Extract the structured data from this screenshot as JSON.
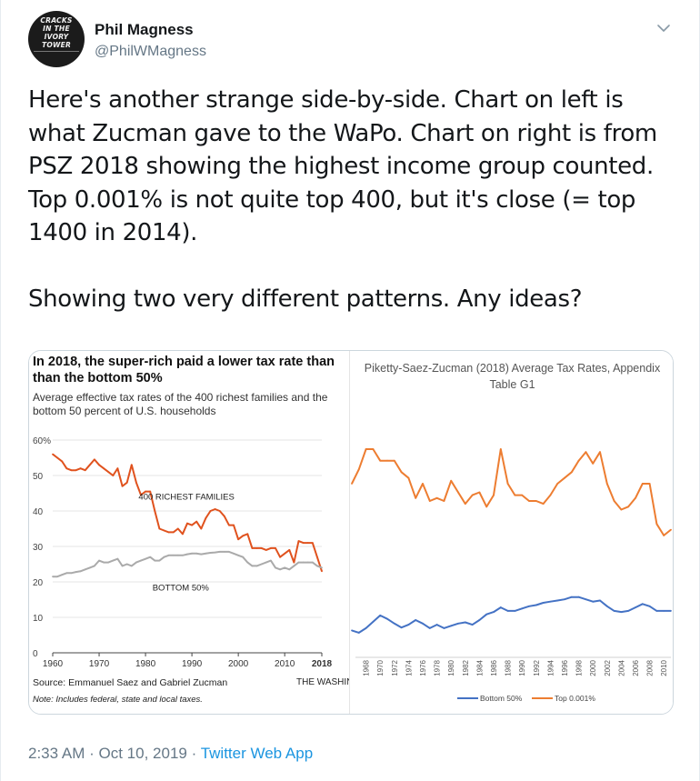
{
  "author": {
    "name": "Phil Magness",
    "handle": "@PhilWMagness",
    "avatar_text": [
      "CRACKS",
      "IN THE",
      "IVORY",
      "TOWER"
    ]
  },
  "tweet": {
    "text": "Here's another strange side-by-side. Chart on left is what Zucman gave to the WaPo. Chart on right is from PSZ 2018 showing the highest income group counted. Top 0.001% is not quite top 400, but it's close (= top 1400 in 2014).\n\nShowing two very different patterns. Any ideas?",
    "time": "2:33 AM",
    "date": "Oct 10, 2019",
    "separator": "·",
    "app": "Twitter Web App"
  },
  "icons": {
    "caret": "chevron-down-icon"
  },
  "colors": {
    "wapo_top": "#e0521e",
    "wapo_bottom": "#aaaaaa",
    "psz_top": "#ed7d31",
    "psz_bottom": "#4472c4",
    "link": "#1b95e0",
    "secondary_text": "#657786"
  },
  "left_chart": {
    "title_line1": "In 2018, the super-rich paid a lower tax rate than",
    "title_line2": "than the bottom 50%",
    "subtitle_line1": "Average effective tax rates of the 400 richest families and the",
    "subtitle_line2": "bottom 50 percent of U.S. households",
    "source": "Source: Emmanuel Saez and Gabriel Zucman",
    "credit": "THE WASHINGTON POST",
    "note": "Note: Includes federal, state and local taxes.",
    "label_top": "400 RICHEST FAMILIES",
    "label_bottom": "BOTTOM 50%"
  },
  "right_chart": {
    "title_line1": "Piketty-Saez-Zucman (2018) Average Tax Rates, Appendix",
    "title_line2": "Table G1"
  },
  "chart_data": [
    {
      "type": "line",
      "title": "In 2018, the super-rich paid a lower tax rate than the bottom 50%",
      "subtitle": "Average effective tax rates of the 400 richest families and the bottom 50 percent of U.S. households",
      "x_ticks": [
        1960,
        1970,
        1980,
        1990,
        2000,
        2010,
        2018
      ],
      "y_ticks": [
        "0",
        "10",
        "20",
        "30",
        "40",
        "50",
        "60%"
      ],
      "xlim": [
        1960,
        2018
      ],
      "ylim": [
        0,
        60
      ],
      "grid": true,
      "series": [
        {
          "name": "400 RICHEST FAMILIES",
          "x": [
            1960,
            1961,
            1962,
            1963,
            1964,
            1965,
            1966,
            1967,
            1968,
            1969,
            1970,
            1971,
            1972,
            1973,
            1974,
            1975,
            1976,
            1977,
            1978,
            1979,
            1980,
            1981,
            1982,
            1983,
            1984,
            1985,
            1986,
            1987,
            1988,
            1989,
            1990,
            1991,
            1992,
            1993,
            1994,
            1995,
            1996,
            1997,
            1998,
            1999,
            2000,
            2001,
            2002,
            2003,
            2004,
            2005,
            2006,
            2007,
            2008,
            2009,
            2010,
            2011,
            2012,
            2013,
            2014,
            2015,
            2016,
            2017,
            2018
          ],
          "values": [
            56,
            55,
            54,
            52,
            51.5,
            51.5,
            52,
            51.5,
            53,
            54.5,
            53,
            52,
            51,
            50,
            52,
            47,
            48,
            53,
            48,
            44.5,
            45.5,
            45.5,
            40,
            35,
            34.5,
            34,
            34,
            35,
            33.5,
            36.5,
            36,
            37,
            35,
            38,
            40,
            40.5,
            40,
            38.5,
            36,
            36,
            32,
            33,
            33.5,
            29.5,
            29.5,
            29.5,
            29,
            29.5,
            29.5,
            27,
            28,
            29,
            25.5,
            31.5,
            31,
            31,
            31,
            27,
            23
          ]
        },
        {
          "name": "BOTTOM 50%",
          "x": [
            1960,
            1961,
            1962,
            1963,
            1964,
            1965,
            1966,
            1967,
            1968,
            1969,
            1970,
            1971,
            1972,
            1973,
            1974,
            1975,
            1976,
            1977,
            1978,
            1979,
            1980,
            1981,
            1982,
            1983,
            1984,
            1985,
            1986,
            1987,
            1988,
            1989,
            1990,
            1991,
            1992,
            1993,
            1994,
            1995,
            1996,
            1997,
            1998,
            1999,
            2000,
            2001,
            2002,
            2003,
            2004,
            2005,
            2006,
            2007,
            2008,
            2009,
            2010,
            2011,
            2012,
            2013,
            2014,
            2015,
            2016,
            2017,
            2018
          ],
          "values": [
            21.5,
            21.5,
            22,
            22.5,
            22.5,
            22.8,
            23,
            23.5,
            24,
            24.5,
            26,
            25.5,
            25.5,
            26,
            26.5,
            24.5,
            25,
            24.5,
            25.5,
            26,
            26.5,
            27,
            26,
            26,
            27,
            27.5,
            27.5,
            27.5,
            27.5,
            27.8,
            28,
            28,
            27.8,
            28,
            28.2,
            28.3,
            28.5,
            28.5,
            28.5,
            28,
            27.5,
            27,
            25.5,
            24.5,
            24.5,
            25,
            25.5,
            26,
            24,
            23.5,
            24,
            23.5,
            24.5,
            25.5,
            25.5,
            25.5,
            25.5,
            24.5,
            24
          ]
        }
      ]
    },
    {
      "type": "line",
      "title": "Piketty-Saez-Zucman (2018) Average Tax Rates, Appendix Table G1",
      "x_ticks": [
        "1968",
        "1970",
        "1972",
        "1974",
        "1976",
        "1978",
        "1980",
        "1982",
        "1984",
        "1986",
        "1988",
        "1990",
        "1992",
        "1994",
        "1996",
        "1998",
        "2000",
        "2002",
        "2004",
        "2006",
        "2008",
        "2010"
      ],
      "xlim": [
        1966,
        2011
      ],
      "grid": false,
      "legend": "bottom-center",
      "series": [
        {
          "name": "Bottom 50%",
          "x": [
            1966,
            1967,
            1968,
            1969,
            1970,
            1971,
            1972,
            1973,
            1974,
            1975,
            1976,
            1977,
            1978,
            1979,
            1980,
            1981,
            1982,
            1983,
            1984,
            1985,
            1986,
            1987,
            1988,
            1989,
            1990,
            1991,
            1992,
            1993,
            1994,
            1995,
            1996,
            1997,
            1998,
            1999,
            2000,
            2001,
            2002,
            2003,
            2004,
            2005,
            2006,
            2007,
            2008,
            2009,
            2010,
            2011
          ],
          "values": [
            22,
            21.6,
            22.4,
            23.5,
            24.6,
            24.0,
            23.2,
            22.5,
            23.0,
            23.8,
            23.2,
            22.4,
            23.0,
            22.4,
            22.8,
            23.2,
            23.4,
            23.0,
            23.8,
            24.8,
            25.2,
            26.0,
            25.4,
            25.4,
            25.8,
            26.2,
            26.4,
            26.8,
            27.0,
            27.2,
            27.4,
            27.8,
            27.8,
            27.4,
            27.0,
            27.2,
            26.2,
            25.4,
            25.2,
            25.4,
            26.0,
            26.6,
            26.2,
            25.4,
            25.4,
            25.4
          ]
        },
        {
          "name": "Top 0.001%",
          "x": [
            1966,
            1967,
            1968,
            1969,
            1970,
            1971,
            1972,
            1973,
            1974,
            1975,
            1976,
            1977,
            1978,
            1979,
            1980,
            1981,
            1982,
            1983,
            1984,
            1985,
            1986,
            1987,
            1988,
            1989,
            1990,
            1991,
            1992,
            1993,
            1994,
            1995,
            1996,
            1997,
            1998,
            1999,
            2000,
            2001,
            2002,
            2003,
            2004,
            2005,
            2006,
            2007,
            2008,
            2009,
            2010,
            2011
          ],
          "values": [
            47.5,
            50,
            53.5,
            53.5,
            51.5,
            51.5,
            51.5,
            49.5,
            48.5,
            45.0,
            47.5,
            44.5,
            45.0,
            44.5,
            48.0,
            46.0,
            44.0,
            45.5,
            46.0,
            43.5,
            45.5,
            53.5,
            47.5,
            45.5,
            45.5,
            44.5,
            44.5,
            44.0,
            45.5,
            47.5,
            48.5,
            49.5,
            51.5,
            53.0,
            51.0,
            53.0,
            47.5,
            44.5,
            43.0,
            43.5,
            45.0,
            47.5,
            47.5,
            40.5,
            38.5,
            39.5
          ]
        }
      ]
    }
  ]
}
